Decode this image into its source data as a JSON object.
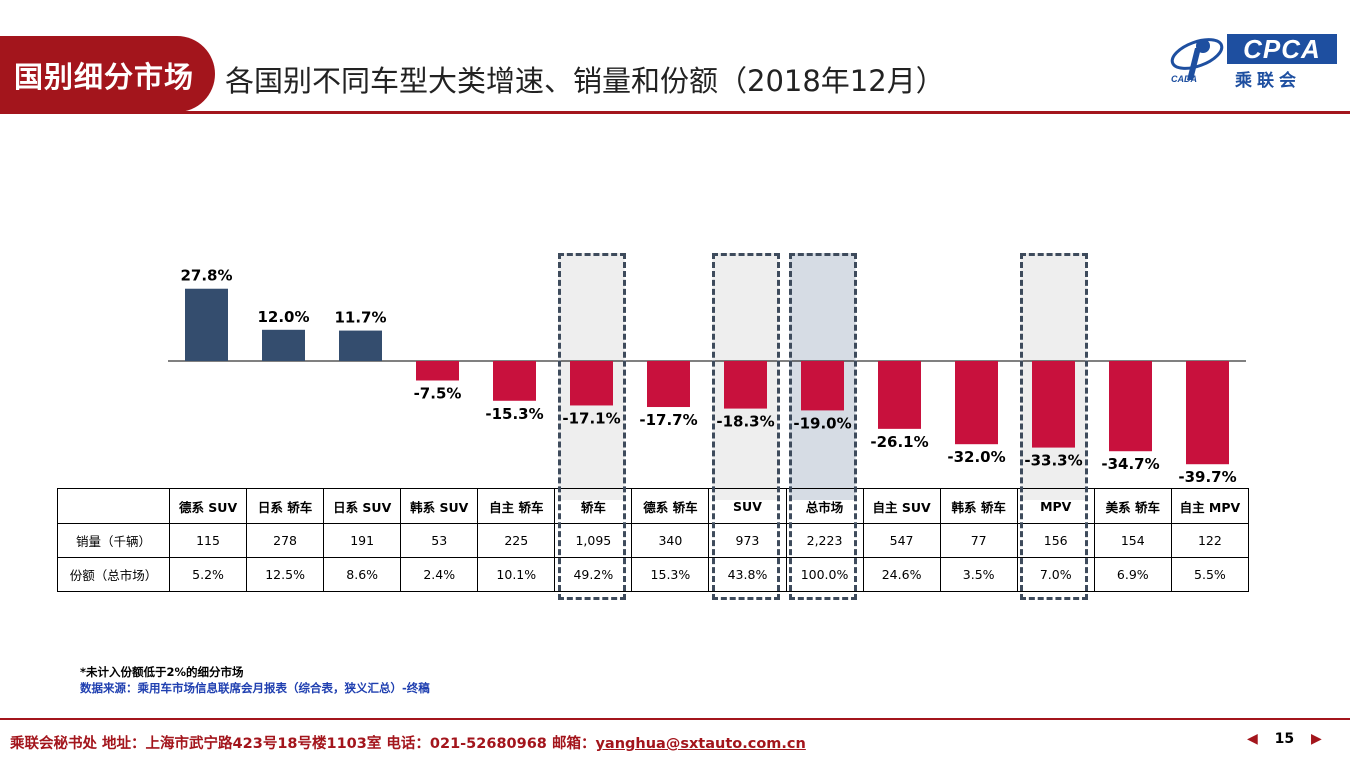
{
  "header": {
    "tab_label": "国别细分市场",
    "title": "各国别不同车型大类增速、销量和份额（2018年12月）"
  },
  "logo": {
    "brand": "CPCA",
    "brand_cn": "乘联会",
    "sub": "CADA"
  },
  "colors": {
    "positive": "#344d6e",
    "negative": "#c8113d",
    "accent": "#a3151c",
    "highlight_bg": "#eeeeee",
    "total_bg": "#d6dce4"
  },
  "chart_data": {
    "type": "bar",
    "categories": [
      "德系 SUV",
      "日系 轿车",
      "日系 SUV",
      "韩系 SUV",
      "自主 轿车",
      "轿车",
      "德系 轿车",
      "SUV",
      "总市场",
      "自主 SUV",
      "韩系 轿车",
      "MPV",
      "美系 轿车",
      "自主 MPV"
    ],
    "values": [
      27.8,
      12.0,
      11.7,
      -7.5,
      -15.3,
      -17.1,
      -17.7,
      -18.3,
      -19.0,
      -26.1,
      -32.0,
      -33.3,
      -34.7,
      -39.7
    ],
    "value_labels": [
      "27.8%",
      "12.0%",
      "11.7%",
      "-7.5%",
      "-15.3%",
      "-17.1%",
      "-17.7%",
      "-18.3%",
      "-19.0%",
      "-26.1%",
      "-32.0%",
      "-33.3%",
      "-34.7%",
      "-39.7%"
    ],
    "highlighted": [
      "轿车",
      "SUV",
      "总市场",
      "MPV"
    ],
    "ylim": [
      -40,
      30
    ]
  },
  "table": {
    "rows": [
      {
        "label": "销量（千辆）",
        "values": [
          "115",
          "278",
          "191",
          "53",
          "225",
          "1,095",
          "340",
          "973",
          "2,223",
          "547",
          "77",
          "156",
          "154",
          "122"
        ]
      },
      {
        "label": "份额（总市场）",
        "values": [
          "5.2%",
          "12.5%",
          "8.6%",
          "2.4%",
          "10.1%",
          "49.2%",
          "15.3%",
          "43.8%",
          "100.0%",
          "24.6%",
          "3.5%",
          "7.0%",
          "6.9%",
          "5.5%"
        ]
      }
    ]
  },
  "notes": {
    "footnote": "*未计入份额低于2%的细分市场",
    "source": "数据来源：乘用车市场信息联席会月报表（综合表，狭义汇总）-终稿"
  },
  "footer": {
    "text": "乘联会秘书处   地址：上海市武宁路423号18号楼1103室  电话：021-52680968   邮箱：",
    "email": "yanghua@sxtauto.com.cn",
    "page_number": "15",
    "prev_icon": "triangle-left",
    "next_icon": "triangle-right"
  }
}
